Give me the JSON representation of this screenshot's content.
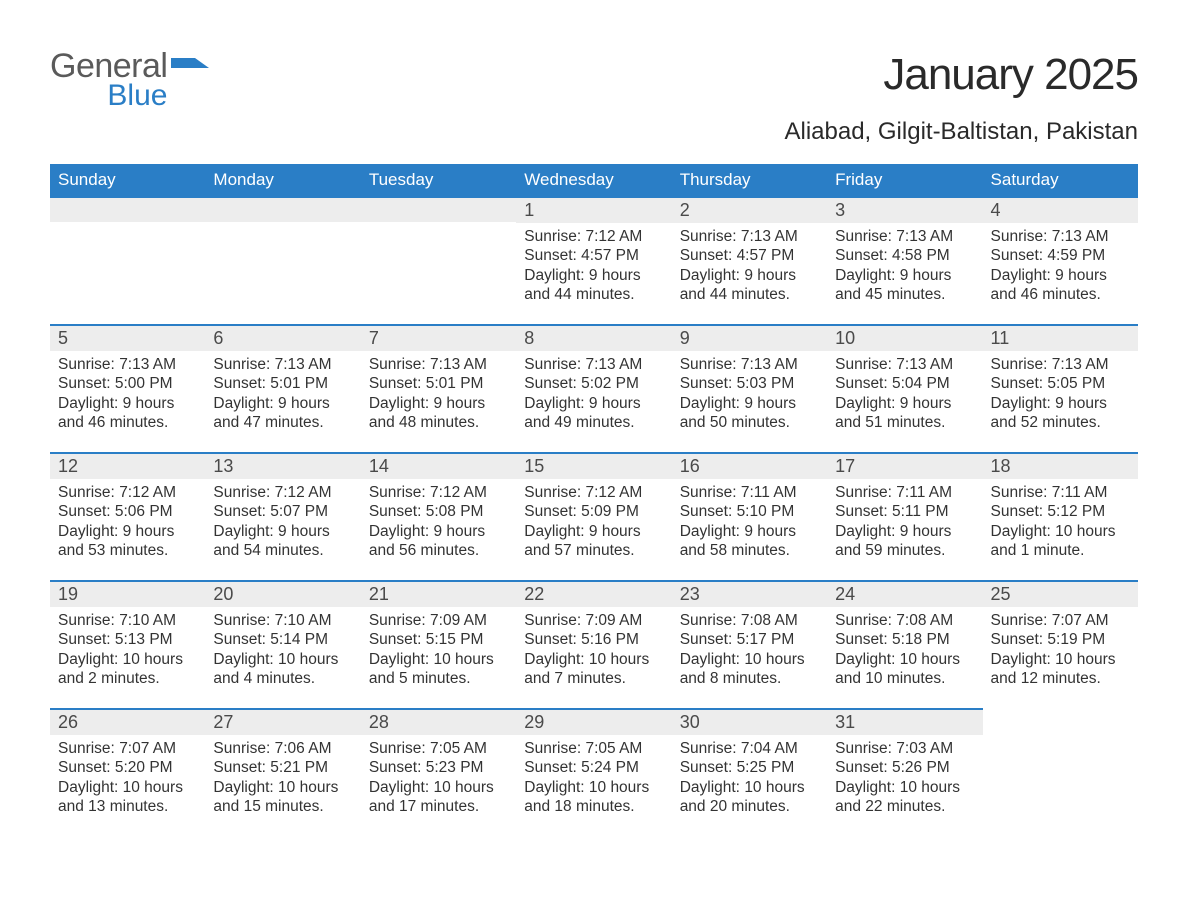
{
  "brand": {
    "line1": "General",
    "line2": "Blue"
  },
  "header": {
    "title": "January 2025",
    "subtitle": "Aliabad, Gilgit-Baltistan, Pakistan"
  },
  "style": {
    "accent_color": "#2a7ec6",
    "daynum_bg": "#ededed",
    "text_color": "#333333",
    "background": "#ffffff",
    "title_fontsize": 44,
    "subtitle_fontsize": 24,
    "header_fontsize": 17,
    "body_fontsize": 15.5
  },
  "calendar": {
    "type": "table",
    "columns": [
      "Sunday",
      "Monday",
      "Tuesday",
      "Wednesday",
      "Thursday",
      "Friday",
      "Saturday"
    ],
    "weeks": [
      [
        null,
        null,
        null,
        {
          "n": "1",
          "sunrise": "7:12 AM",
          "sunset": "4:57 PM",
          "daylight": "9 hours and 44 minutes."
        },
        {
          "n": "2",
          "sunrise": "7:13 AM",
          "sunset": "4:57 PM",
          "daylight": "9 hours and 44 minutes."
        },
        {
          "n": "3",
          "sunrise": "7:13 AM",
          "sunset": "4:58 PM",
          "daylight": "9 hours and 45 minutes."
        },
        {
          "n": "4",
          "sunrise": "7:13 AM",
          "sunset": "4:59 PM",
          "daylight": "9 hours and 46 minutes."
        }
      ],
      [
        {
          "n": "5",
          "sunrise": "7:13 AM",
          "sunset": "5:00 PM",
          "daylight": "9 hours and 46 minutes."
        },
        {
          "n": "6",
          "sunrise": "7:13 AM",
          "sunset": "5:01 PM",
          "daylight": "9 hours and 47 minutes."
        },
        {
          "n": "7",
          "sunrise": "7:13 AM",
          "sunset": "5:01 PM",
          "daylight": "9 hours and 48 minutes."
        },
        {
          "n": "8",
          "sunrise": "7:13 AM",
          "sunset": "5:02 PM",
          "daylight": "9 hours and 49 minutes."
        },
        {
          "n": "9",
          "sunrise": "7:13 AM",
          "sunset": "5:03 PM",
          "daylight": "9 hours and 50 minutes."
        },
        {
          "n": "10",
          "sunrise": "7:13 AM",
          "sunset": "5:04 PM",
          "daylight": "9 hours and 51 minutes."
        },
        {
          "n": "11",
          "sunrise": "7:13 AM",
          "sunset": "5:05 PM",
          "daylight": "9 hours and 52 minutes."
        }
      ],
      [
        {
          "n": "12",
          "sunrise": "7:12 AM",
          "sunset": "5:06 PM",
          "daylight": "9 hours and 53 minutes."
        },
        {
          "n": "13",
          "sunrise": "7:12 AM",
          "sunset": "5:07 PM",
          "daylight": "9 hours and 54 minutes."
        },
        {
          "n": "14",
          "sunrise": "7:12 AM",
          "sunset": "5:08 PM",
          "daylight": "9 hours and 56 minutes."
        },
        {
          "n": "15",
          "sunrise": "7:12 AM",
          "sunset": "5:09 PM",
          "daylight": "9 hours and 57 minutes."
        },
        {
          "n": "16",
          "sunrise": "7:11 AM",
          "sunset": "5:10 PM",
          "daylight": "9 hours and 58 minutes."
        },
        {
          "n": "17",
          "sunrise": "7:11 AM",
          "sunset": "5:11 PM",
          "daylight": "9 hours and 59 minutes."
        },
        {
          "n": "18",
          "sunrise": "7:11 AM",
          "sunset": "5:12 PM",
          "daylight": "10 hours and 1 minute."
        }
      ],
      [
        {
          "n": "19",
          "sunrise": "7:10 AM",
          "sunset": "5:13 PM",
          "daylight": "10 hours and 2 minutes."
        },
        {
          "n": "20",
          "sunrise": "7:10 AM",
          "sunset": "5:14 PM",
          "daylight": "10 hours and 4 minutes."
        },
        {
          "n": "21",
          "sunrise": "7:09 AM",
          "sunset": "5:15 PM",
          "daylight": "10 hours and 5 minutes."
        },
        {
          "n": "22",
          "sunrise": "7:09 AM",
          "sunset": "5:16 PM",
          "daylight": "10 hours and 7 minutes."
        },
        {
          "n": "23",
          "sunrise": "7:08 AM",
          "sunset": "5:17 PM",
          "daylight": "10 hours and 8 minutes."
        },
        {
          "n": "24",
          "sunrise": "7:08 AM",
          "sunset": "5:18 PM",
          "daylight": "10 hours and 10 minutes."
        },
        {
          "n": "25",
          "sunrise": "7:07 AM",
          "sunset": "5:19 PM",
          "daylight": "10 hours and 12 minutes."
        }
      ],
      [
        {
          "n": "26",
          "sunrise": "7:07 AM",
          "sunset": "5:20 PM",
          "daylight": "10 hours and 13 minutes."
        },
        {
          "n": "27",
          "sunrise": "7:06 AM",
          "sunset": "5:21 PM",
          "daylight": "10 hours and 15 minutes."
        },
        {
          "n": "28",
          "sunrise": "7:05 AM",
          "sunset": "5:23 PM",
          "daylight": "10 hours and 17 minutes."
        },
        {
          "n": "29",
          "sunrise": "7:05 AM",
          "sunset": "5:24 PM",
          "daylight": "10 hours and 18 minutes."
        },
        {
          "n": "30",
          "sunrise": "7:04 AM",
          "sunset": "5:25 PM",
          "daylight": "10 hours and 20 minutes."
        },
        {
          "n": "31",
          "sunrise": "7:03 AM",
          "sunset": "5:26 PM",
          "daylight": "10 hours and 22 minutes."
        },
        null
      ]
    ],
    "labels": {
      "sunrise": "Sunrise:",
      "sunset": "Sunset:",
      "daylight": "Daylight:"
    }
  }
}
